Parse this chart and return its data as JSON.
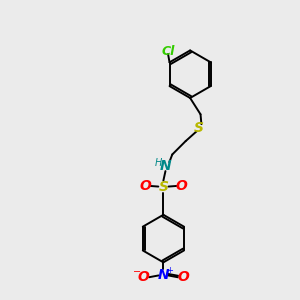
{
  "bg_color": "#ebebeb",
  "bond_color": "#000000",
  "cl_color": "#33cc00",
  "s_color": "#b8b800",
  "n_color": "#0000ff",
  "o_color": "#ff0000",
  "nh_color": "#008888",
  "bond_lw": 1.4,
  "font_size": 8,
  "fig_size": [
    3.0,
    3.0
  ],
  "dpi": 100,
  "xlim": [
    0,
    10
  ],
  "ylim": [
    0,
    10
  ]
}
